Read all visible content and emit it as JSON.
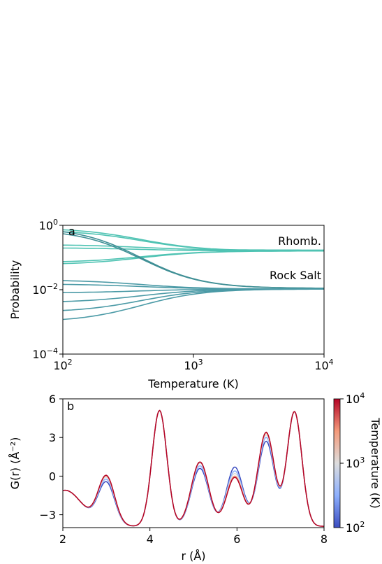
{
  "chart_data": [
    {
      "type": "line",
      "panel_label": "a",
      "xlabel": "Temperature (K)",
      "ylabel": "Probability",
      "xscale": "log",
      "yscale": "log",
      "xlim": [
        100,
        10000
      ],
      "ylim": [
        0.0001,
        1
      ],
      "x_ticks": [
        {
          "base": "10",
          "exp": "2"
        },
        {
          "base": "10",
          "exp": "3"
        },
        {
          "base": "10",
          "exp": "4"
        }
      ],
      "y_ticks": [
        {
          "base": "10",
          "exp": "0"
        },
        {
          "base": "10",
          "exp": "−2"
        },
        {
          "base": "10",
          "exp": "−4"
        }
      ],
      "annotations": [
        "Rhomb.",
        "Rock Salt"
      ],
      "group_colors": {
        "rhomb": "#4fc3b3",
        "rocksalt": "#4b9aa6",
        "crossing": "#3f8f95"
      },
      "series": [
        {
          "group": "rhomb",
          "start": 0.82,
          "end": 0.16
        },
        {
          "group": "rhomb",
          "start": 0.7,
          "end": 0.16
        },
        {
          "group": "rhomb",
          "start": 0.07,
          "end": 0.16
        },
        {
          "group": "rhomb",
          "start": 0.06,
          "end": 0.16
        },
        {
          "group": "rhomb",
          "start": 0.2,
          "end": 0.16
        },
        {
          "group": "rhomb",
          "start": 0.25,
          "end": 0.17
        },
        {
          "group": "crossing",
          "start": 0.88,
          "end": 0.011
        },
        {
          "group": "crossing",
          "start": 0.75,
          "end": 0.011
        },
        {
          "group": "rocksalt",
          "start": 0.02,
          "end": 0.0105
        },
        {
          "group": "rocksalt",
          "start": 0.015,
          "end": 0.0105
        },
        {
          "group": "rocksalt",
          "start": 0.008,
          "end": 0.0105
        },
        {
          "group": "rocksalt",
          "start": 0.004,
          "end": 0.0105
        },
        {
          "group": "rocksalt",
          "start": 0.002,
          "end": 0.0105
        },
        {
          "group": "rocksalt",
          "start": 0.001,
          "end": 0.0105
        }
      ]
    },
    {
      "type": "line",
      "panel_label": "b",
      "xlabel": "r (Å)",
      "ylabel": "G(r) (Å⁻²)",
      "xlim": [
        2,
        8
      ],
      "ylim": [
        -4,
        6
      ],
      "x_ticks": [
        "2",
        "4",
        "6",
        "8"
      ],
      "y_ticks": [
        "6",
        "3",
        "0",
        "−3"
      ],
      "colorbar": {
        "label": "Temperature (K)",
        "scale": "log",
        "range": [
          100,
          10000
        ],
        "ticks": [
          {
            "base": "10",
            "exp": "4"
          },
          {
            "base": "10",
            "exp": "3"
          },
          {
            "base": "10",
            "exp": "2"
          }
        ],
        "colors": [
          "#3b4cc0",
          "#8db0fe",
          "#dddddd",
          "#f49a7b",
          "#b40426"
        ]
      },
      "baseline": {
        "offset": -3.9,
        "peaks": [
          [
            2.05,
            2.8,
            0.4
          ],
          [
            3.0,
            3.75,
            0.19
          ],
          [
            4.22,
            9.0,
            0.17
          ],
          [
            5.15,
            5.0,
            0.2
          ],
          [
            5.95,
            4.0,
            0.19
          ],
          [
            6.67,
            7.25,
            0.19
          ],
          [
            7.32,
            8.9,
            0.17
          ]
        ]
      },
      "series": [
        {
          "temperature": 100,
          "peak_heights": [
            2.8,
            3.3,
            9.0,
            4.5,
            4.6,
            6.6,
            8.9
          ]
        },
        {
          "temperature": 300,
          "peak_heights": [
            2.8,
            3.5,
            9.0,
            4.7,
            4.3,
            6.9,
            8.9
          ]
        },
        {
          "temperature": 1000,
          "peak_heights": [
            2.8,
            3.65,
            9.0,
            4.9,
            4.1,
            7.1,
            8.9
          ]
        },
        {
          "temperature": 3000,
          "peak_heights": [
            2.8,
            3.75,
            9.0,
            5.0,
            3.9,
            7.25,
            8.9
          ]
        },
        {
          "temperature": 10000,
          "peak_heights": [
            2.8,
            3.8,
            9.0,
            5.0,
            3.8,
            7.3,
            8.9
          ]
        }
      ]
    }
  ]
}
